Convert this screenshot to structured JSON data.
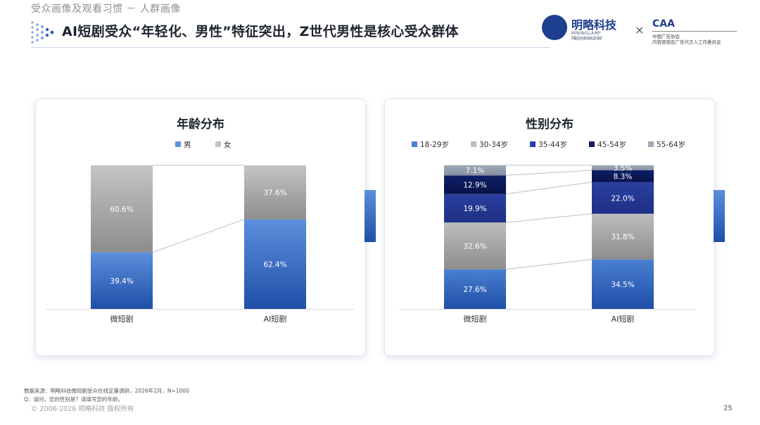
{
  "header": {
    "section_title": "受众画像及观看习惯 － 人群画像",
    "headline": "AI短剧受众“年轻化、男性”特征突出，Z世代男性是核心受众群体",
    "logo_mingle_name": "明略科技",
    "logo_mingle_sub": "MININGLAMP TECHNOLOGY",
    "logo_mingle_sub2": "明略科技 2712.HK",
    "cross": "×",
    "logo_caa_mark": "CAA",
    "logo_caa_line1": "中国广告协会",
    "logo_caa_line2": "内容营销及广告代言人工作委员会"
  },
  "colors": {
    "male_top": "#5b8fdc",
    "male_bottom": "#1f4fa8",
    "female_top": "#c4c4c4",
    "female_bottom": "#8d8d8d",
    "age_18_29": "#4a7fd0",
    "age_30_34": "#bdbdbd",
    "age_35_44": "#2a3fa0",
    "age_45_54": "#0e1f66",
    "age_55_64": "#a0a8b8"
  },
  "chart_data": [
    {
      "type": "bar",
      "stacked": true,
      "title": "年龄分布",
      "categories": [
        "微短剧",
        "AI短剧"
      ],
      "series": [
        {
          "name": "男",
          "values": [
            39.4,
            62.4
          ],
          "labels": [
            "39.4%",
            "62.4%"
          ]
        },
        {
          "name": "女",
          "values": [
            60.6,
            37.6
          ],
          "labels": [
            "60.6%",
            "37.6%"
          ]
        }
      ],
      "ylim": [
        0,
        100
      ],
      "legend_position": "top",
      "connector_lines": true
    },
    {
      "type": "bar",
      "stacked": true,
      "title": "性别分布",
      "categories": [
        "微短剧",
        "AI短剧"
      ],
      "series": [
        {
          "name": "18-29岁",
          "values": [
            27.6,
            34.5
          ],
          "labels": [
            "27.6%",
            "34.5%"
          ]
        },
        {
          "name": "30-34岁",
          "values": [
            32.6,
            31.8
          ],
          "labels": [
            "32.6%",
            "31.8%"
          ]
        },
        {
          "name": "35-44岁",
          "values": [
            19.9,
            22.0
          ],
          "labels": [
            "19.9%",
            "22.0%"
          ]
        },
        {
          "name": "45-54岁",
          "values": [
            12.9,
            8.3
          ],
          "labels": [
            "12.9%",
            "8.3%"
          ]
        },
        {
          "name": "55-64岁",
          "values": [
            7.1,
            3.5
          ],
          "labels": [
            "7.1%",
            "3.5%"
          ]
        }
      ],
      "ylim": [
        0,
        100
      ],
      "legend_position": "top",
      "connector_lines": true
    }
  ],
  "footer": {
    "source_line1": "数据来源：明略科技微短剧受众在线定量调研，2026年2月，N=1000",
    "source_line2": "Q：请问，您的性别是？请填写您的年龄。",
    "copyright": "© 2006-2026 明略科技 版权所有",
    "page_number": "25"
  }
}
